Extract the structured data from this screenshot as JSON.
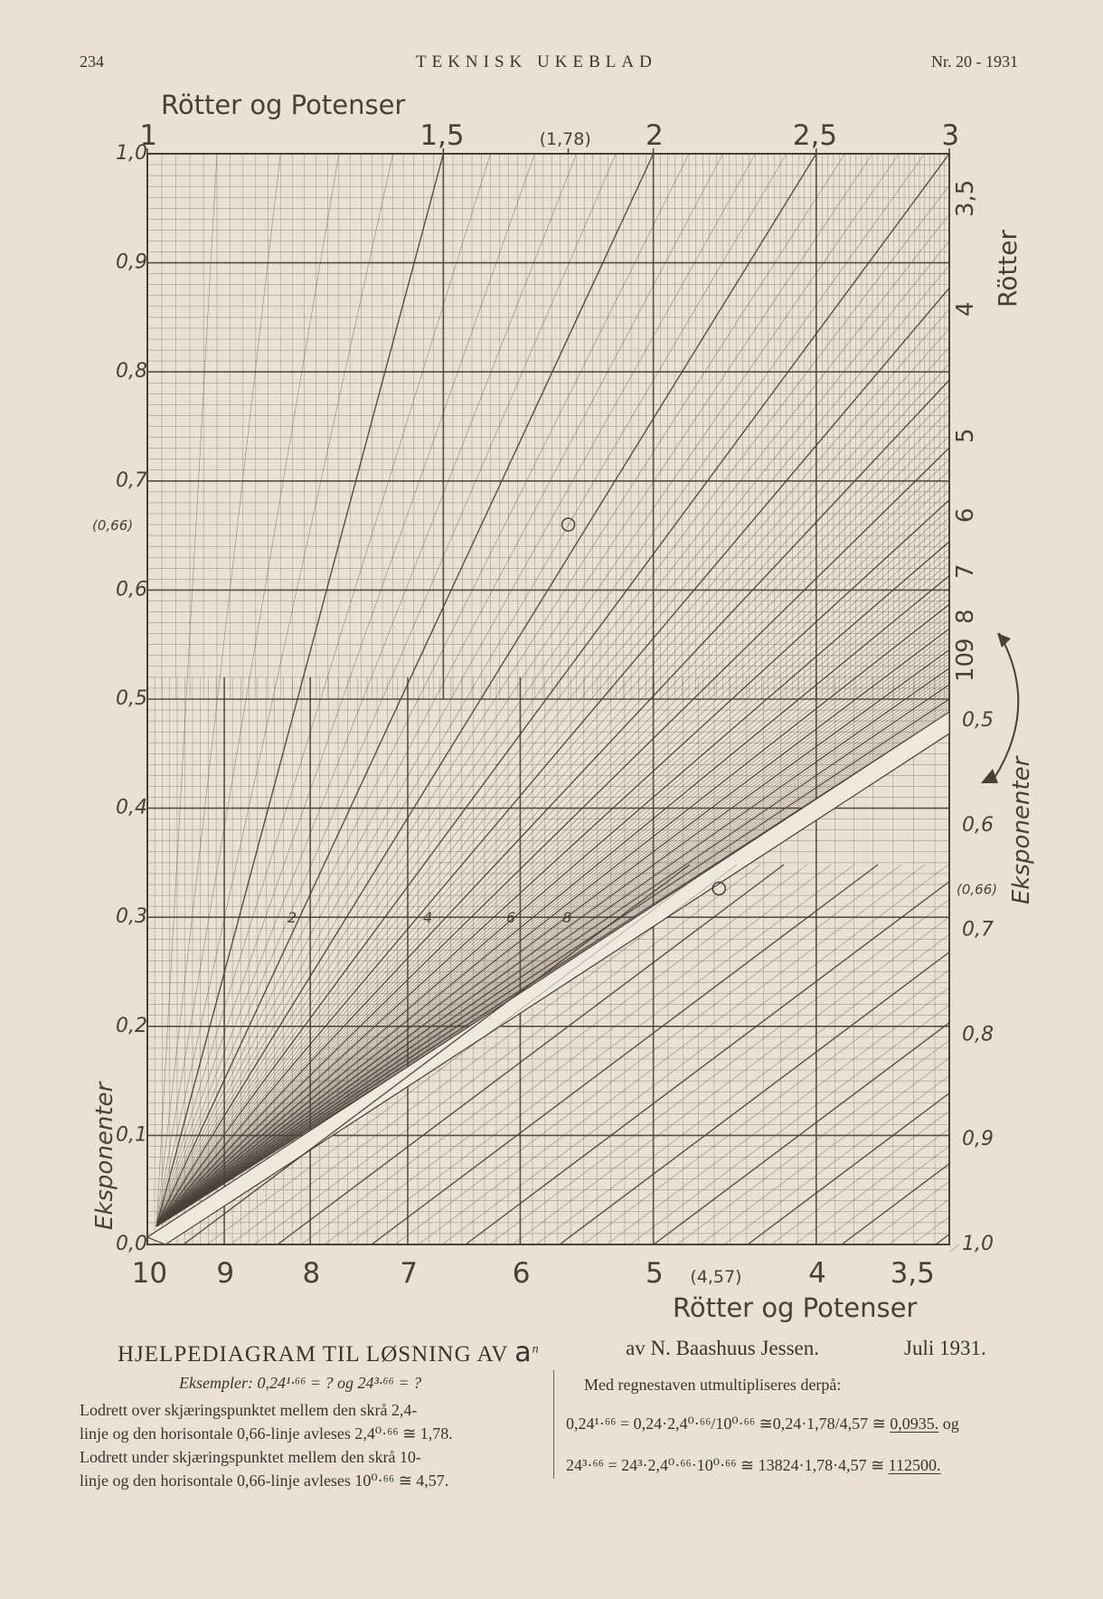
{
  "header": {
    "page_number": "234",
    "journal": "TEKNISK UKEBLAD",
    "issue": "Nr. 20 - 1931"
  },
  "chart_data": {
    "type": "nomogram",
    "top_title": "Rötter og Potenser",
    "bottom_title": "Rötter og Potenser",
    "top_axis_ticks": [
      {
        "value": 1,
        "label": "1"
      },
      {
        "value": 1.5,
        "label": "1,5"
      },
      {
        "value": 1.78,
        "label": "(1,78)"
      },
      {
        "value": 2,
        "label": "2"
      },
      {
        "value": 2.5,
        "label": "2,5"
      },
      {
        "value": 3,
        "label": "3"
      }
    ],
    "bottom_axis_ticks": [
      {
        "value": 10,
        "label": "10"
      },
      {
        "value": 9,
        "label": "9"
      },
      {
        "value": 8,
        "label": "8"
      },
      {
        "value": 7,
        "label": "7"
      },
      {
        "value": 6,
        "label": "6"
      },
      {
        "value": 5,
        "label": "5"
      },
      {
        "value": 4.57,
        "label": "(4,57)"
      },
      {
        "value": 4,
        "label": "4"
      },
      {
        "value": 3.5,
        "label": "3,5"
      }
    ],
    "left_axis_label": "Eksponenter",
    "left_axis_ticks": [
      {
        "value": 1.0,
        "label": "1,0"
      },
      {
        "value": 0.9,
        "label": "0,9"
      },
      {
        "value": 0.8,
        "label": "0,8"
      },
      {
        "value": 0.7,
        "label": "0,7"
      },
      {
        "value": 0.66,
        "label": "(0,66)"
      },
      {
        "value": 0.6,
        "label": "0,6"
      },
      {
        "value": 0.5,
        "label": "0,5"
      },
      {
        "value": 0.4,
        "label": "0,4"
      },
      {
        "value": 0.3,
        "label": "0,3"
      },
      {
        "value": 0.2,
        "label": "0,2"
      },
      {
        "value": 0.1,
        "label": "0,1"
      },
      {
        "value": 0.0,
        "label": "0,0"
      }
    ],
    "right_axis_label": "Eksponenter",
    "right_axis_ticks": [
      {
        "value": 0.5,
        "label": "0,5"
      },
      {
        "value": 0.6,
        "label": "0,6"
      },
      {
        "value": 0.66,
        "label": "(0,66)"
      },
      {
        "value": 0.7,
        "label": "0,7"
      },
      {
        "value": 0.8,
        "label": "0,8"
      },
      {
        "value": 0.9,
        "label": "0,9"
      },
      {
        "value": 1.0,
        "label": "1,0"
      }
    ],
    "right_roots_label": "Rötter",
    "right_roots_ticks": [
      {
        "value": 3.5,
        "label": "3,5"
      },
      {
        "value": 4,
        "label": "4"
      },
      {
        "value": 5,
        "label": "5"
      },
      {
        "value": 6,
        "label": "6"
      },
      {
        "value": 7,
        "label": "7"
      },
      {
        "value": 8,
        "label": "8"
      },
      {
        "value": 9,
        "label": "9"
      },
      {
        "value": 10,
        "label": "10"
      }
    ],
    "upper_family_labels": [
      "2",
      "4",
      "6",
      "8"
    ],
    "upper_example": {
      "exponent": 0.66,
      "root_base": 2.4,
      "result": 1.78
    },
    "lower_example": {
      "exponent": 0.66,
      "root_base": 10,
      "result": 4.57
    },
    "grid": true
  },
  "caption": {
    "title": "HJELPEDIAGRAM TIL LØSNING AV ",
    "title_var": "a",
    "title_sup": "n",
    "author": "av N. Baashuus Jessen.",
    "date": "Juli 1931.",
    "examples_line": "Eksempler: 0,24¹·⁶⁶ = ? og 24³·⁶⁶ = ?",
    "left_line_1": "Lodrett over skjæringspunktet mellem den skrå 2,4-",
    "left_line_2": "linje og den horisontale 0,66-linje avleses 2,4⁰·⁶⁶ ≅ 1,78.",
    "left_line_3": "Lodrett under skjæringspunktet mellem den skrå 10-",
    "left_line_4": "linje og den horisontale 0,66-linje avleses 10⁰·⁶⁶ ≅ 4,57.",
    "right_intro": "Med regnestaven utmultipliseres derpå:",
    "right_eq_1": "0,24¹·⁶⁶ = 0,24·2,4⁰·⁶⁶/10⁰·⁶⁶ ≅0,24·1,78/4,57 ≅ ",
    "right_eq_1_result": "0,0935.",
    "right_eq_1_tail": " og",
    "right_eq_2": "24³·⁶⁶ = 24³·2,4⁰·⁶⁶·10⁰·⁶⁶ ≅ 13824·1,78·4,57 ≅ ",
    "right_eq_2_result": "112500."
  }
}
